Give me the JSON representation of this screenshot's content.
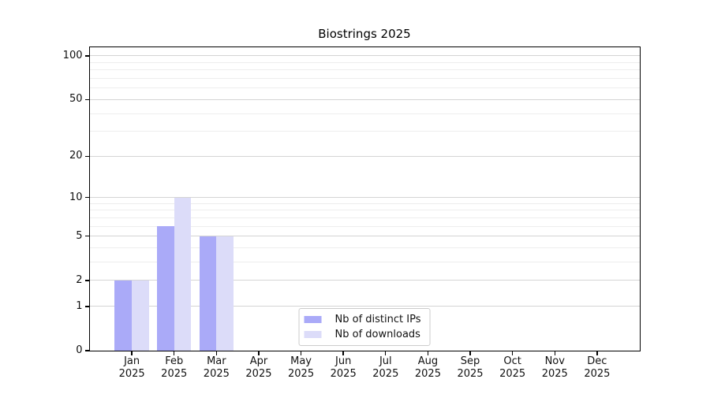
{
  "chart_data": {
    "type": "bar",
    "title": "Biostrings 2025",
    "categories": [
      "Jan 2025",
      "Feb 2025",
      "Mar 2025",
      "Apr 2025",
      "May 2025",
      "Jun 2025",
      "Jul 2025",
      "Aug 2025",
      "Sep 2025",
      "Oct 2025",
      "Nov 2025",
      "Dec 2025"
    ],
    "series": [
      {
        "name": "Nb of distinct IPs",
        "color": "#aaaaf8",
        "values": [
          2,
          6,
          5,
          0,
          0,
          0,
          0,
          0,
          0,
          0,
          0,
          0
        ]
      },
      {
        "name": "Nb of downloads",
        "color": "#dcdcf9",
        "values": [
          2,
          10,
          5,
          0,
          0,
          0,
          0,
          0,
          0,
          0,
          0,
          0
        ]
      }
    ],
    "xlabel": "",
    "ylabel": "",
    "yscale": "log1p",
    "ylim": [
      0,
      114.6
    ],
    "yticks_major": [
      0,
      1,
      2,
      5,
      10,
      20,
      50,
      100
    ],
    "yticks_minor": [
      3,
      4,
      6,
      7,
      8,
      9,
      30,
      40,
      60,
      70,
      80,
      90
    ],
    "grid": "horizontal",
    "legend_position": "lower center",
    "colors": {
      "major_grid": "#d4d4d4",
      "minor_grid": "#ededed",
      "spine": "#000000",
      "tick_text": "#111111",
      "background": "#ffffff"
    }
  }
}
